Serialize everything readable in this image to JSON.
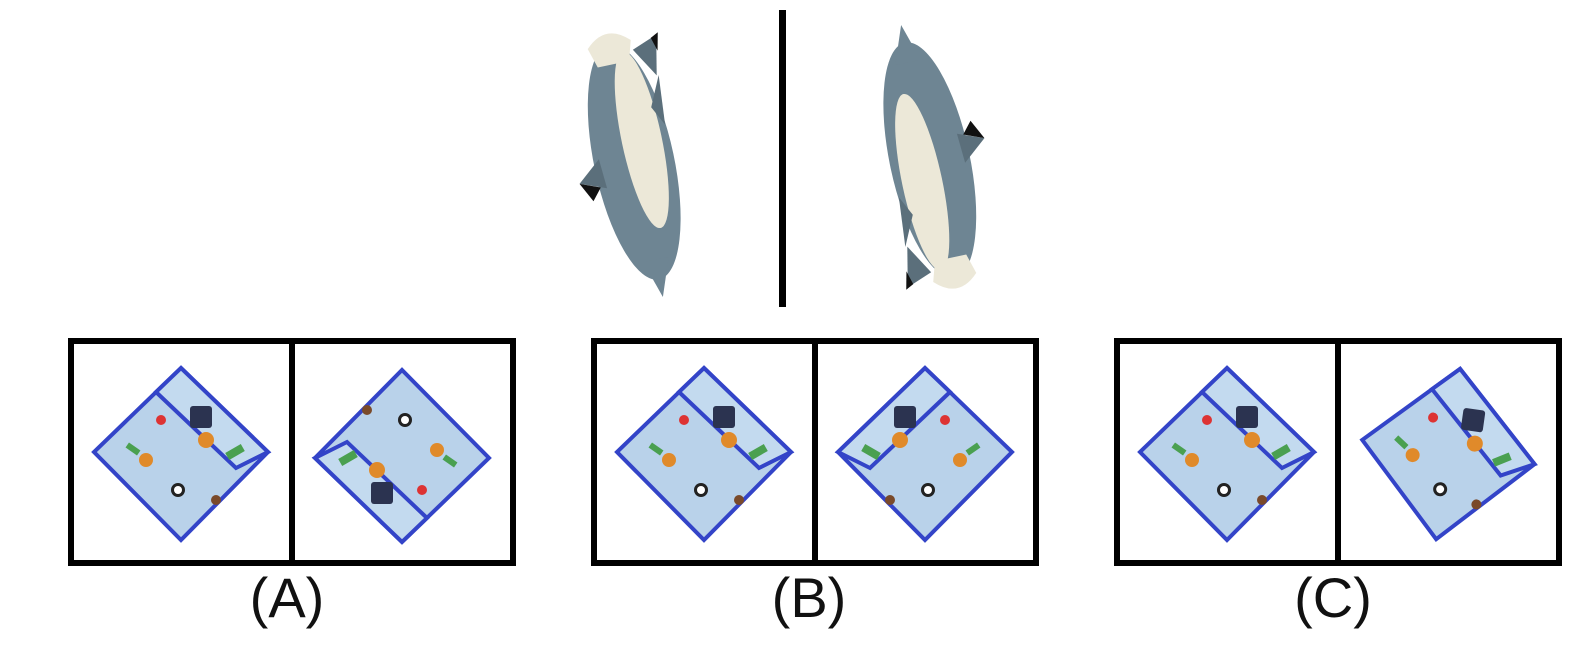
{
  "example": {
    "left_image_icon": "plush-shark-icon",
    "right_image_icon": "plush-shark-icon"
  },
  "options": [
    {
      "label": "(A)",
      "left_icon": "sports-pouch-icon",
      "right_icon": "sports-pouch-icon"
    },
    {
      "label": "(B)",
      "left_icon": "sports-pouch-icon",
      "right_icon": "sports-pouch-icon"
    },
    {
      "label": "(C)",
      "left_icon": "sports-pouch-icon",
      "right_icon": "sports-pouch-icon"
    }
  ],
  "colors": {
    "pouch_fabric": "#b9d2ea",
    "pouch_trim": "#3344c8",
    "shark_body": "#6e8593",
    "shark_belly": "#ece8d8",
    "frame": "#000000"
  }
}
